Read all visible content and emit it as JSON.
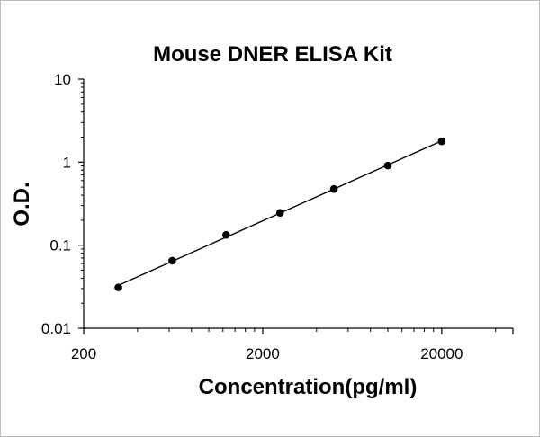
{
  "chart_data": {
    "type": "scatter",
    "title": "Mouse DNER ELISA Kit",
    "xlabel": "Concentration(pg/ml)",
    "ylabel": "O.D.",
    "x_scale": "log",
    "y_scale": "log",
    "xlim": [
      200,
      50000
    ],
    "ylim": [
      0.01,
      10
    ],
    "x_ticks": [
      "200",
      "2000",
      "20000"
    ],
    "y_ticks": [
      "10",
      "1",
      "0.1",
      "0.01"
    ],
    "grid": false,
    "legend": "none",
    "trendline": true,
    "series": [
      {
        "x": [
          312.5,
          625,
          1250,
          2500,
          5000,
          10000,
          20000
        ],
        "y": [
          0.031,
          0.065,
          0.133,
          0.245,
          0.475,
          0.91,
          1.78
        ]
      }
    ],
    "colors": {
      "marker": "#000000",
      "line": "#000000",
      "axis": "#000000"
    }
  }
}
